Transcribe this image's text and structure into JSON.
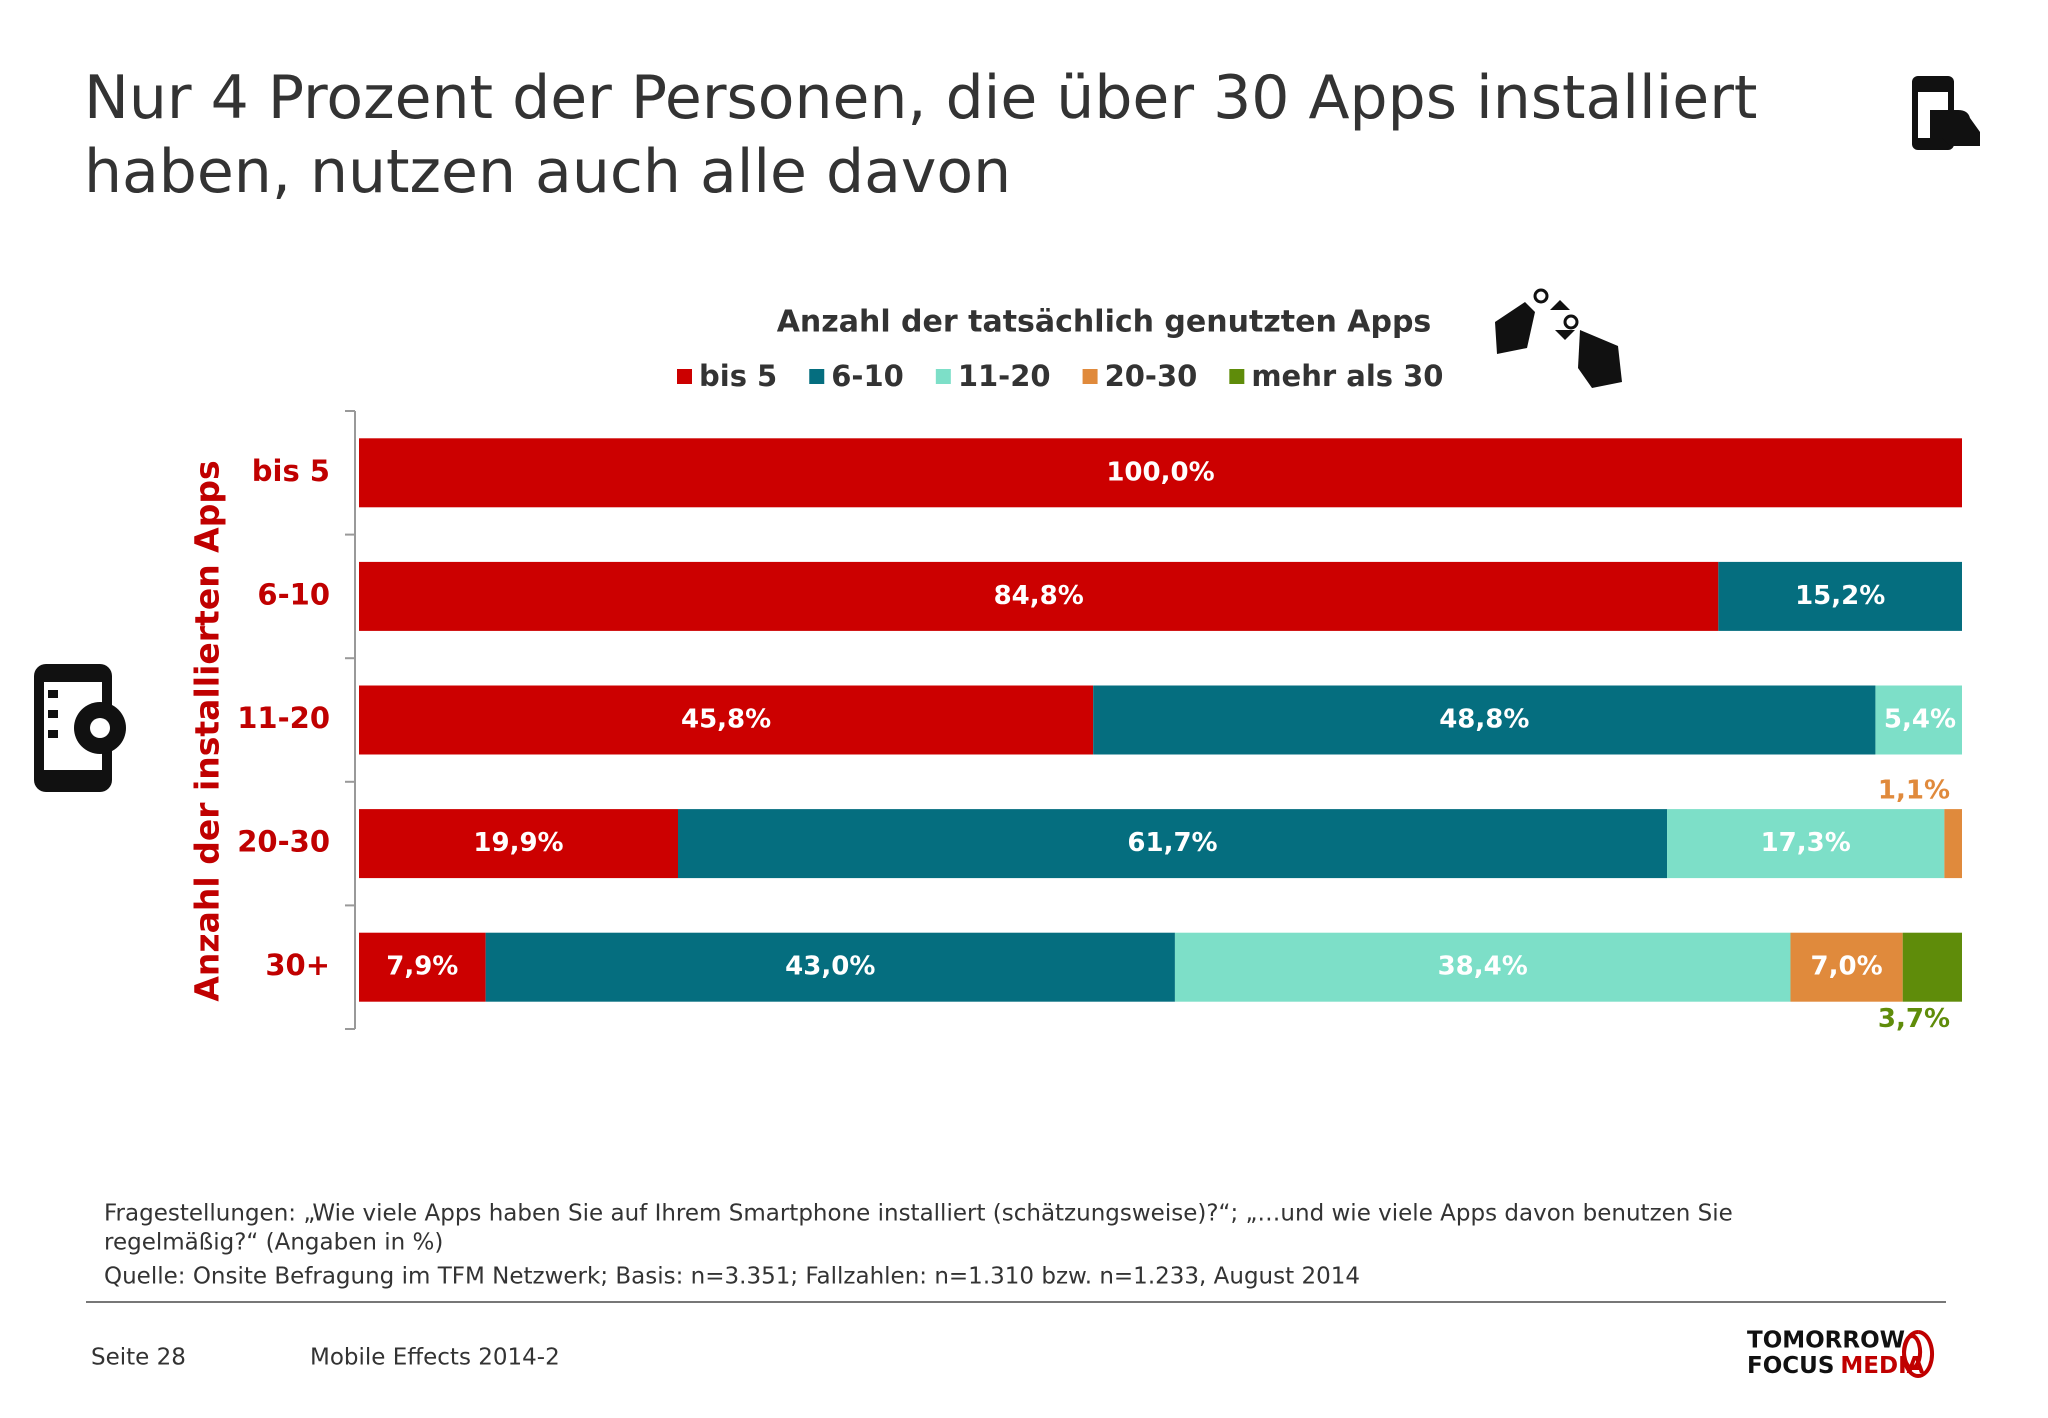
{
  "header": {
    "title_lines": [
      "Nur 4 Prozent der Personen, die über 30 Apps installiert",
      "haben, nutzen auch alle davon"
    ]
  },
  "chart_data": {
    "type": "stacked-bar-horizontal",
    "title": "Anzahl der tatsächlich genutzten Apps",
    "y_label": "Anzahl der installierten Apps",
    "categories": [
      "bis 5",
      "6-10",
      "11-20",
      "20-30",
      "30+"
    ],
    "xlim": [
      0,
      100
    ],
    "series": [
      {
        "name": "bis 5",
        "color": "#cc0000",
        "values": [
          100.0,
          84.8,
          45.8,
          19.9,
          7.9
        ],
        "value_labels": [
          "100,0%",
          "84,8%",
          "45,8%",
          "19,9%",
          "7,9%"
        ]
      },
      {
        "name": "6-10",
        "color": "#056e7f",
        "values": [
          null,
          15.2,
          48.8,
          61.7,
          43.0
        ],
        "value_labels": [
          null,
          "15,2%",
          "48,8%",
          "61,7%",
          "43,0%"
        ]
      },
      {
        "name": "11-20",
        "color": "#7ddfc8",
        "values": [
          null,
          null,
          5.4,
          17.3,
          38.4
        ],
        "value_labels": [
          null,
          null,
          "5,4%",
          "17,3%",
          "38,4%"
        ]
      },
      {
        "name": "20-30",
        "color": "#e08a3c",
        "values": [
          null,
          null,
          null,
          1.1,
          7.0
        ],
        "value_labels": [
          null,
          null,
          null,
          "1,1%",
          "7,0%"
        ]
      },
      {
        "name": "mehr als 30",
        "color": "#5f8c0a",
        "values": [
          null,
          null,
          null,
          null,
          3.7
        ],
        "value_labels": [
          null,
          null,
          null,
          null,
          "3,7%"
        ]
      }
    ]
  },
  "notes": {
    "question_lines": [
      "Fragestellungen: „Wie viele Apps haben Sie auf Ihrem Smartphone installiert (schätzungsweise)?“; „…und wie viele Apps davon benutzen Sie",
      "regelmäßig?“ (Angaben in %)"
    ],
    "source": "Quelle: Onsite Befragung im TFM Netzwerk; Basis: n=3.351; Fallzahlen: n=1.310 bzw. n=1.233, August 2014"
  },
  "footer": {
    "page": "Seite 28",
    "study": "Mobile Effects 2014-2",
    "logo_top": "TOMORROW",
    "logo_bottom_1": "FOCUS",
    "logo_bottom_2": "MEDIA"
  }
}
